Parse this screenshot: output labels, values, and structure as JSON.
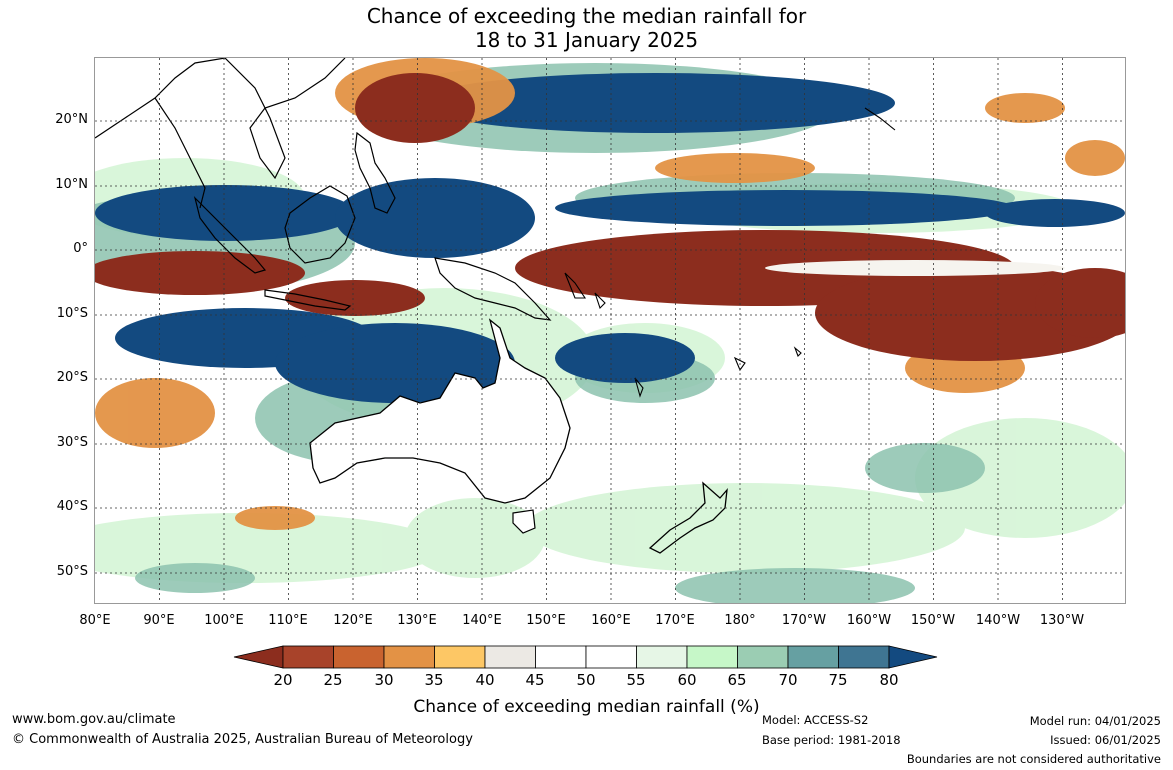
{
  "title_line1": "Chance of exceeding the median rainfall for",
  "title_line2": "18 to 31 January 2025",
  "lat_labels": [
    "20°N",
    "10°N",
    "0°",
    "10°S",
    "20°S",
    "30°S",
    "40°S",
    "50°S"
  ],
  "lon_labels": [
    "80°E",
    "90°E",
    "100°E",
    "110°E",
    "120°E",
    "130°E",
    "140°E",
    "150°E",
    "160°E",
    "170°E",
    "180°",
    "170°W",
    "160°W",
    "150°W",
    "140°W",
    "130°W"
  ],
  "colorbar": {
    "ticks": [
      "20",
      "25",
      "30",
      "35",
      "40",
      "45",
      "50",
      "55",
      "60",
      "65",
      "70",
      "75",
      "80"
    ],
    "colors": [
      "#8c2d1e",
      "#a8432a",
      "#c9632f",
      "#e39245",
      "#fdc765",
      "#ece9e4",
      "#ffffff",
      "#ffffff",
      "#e6f6e6",
      "#c6f7c8",
      "#9bcdb3",
      "#66a0a2",
      "#3f7592",
      "#134a80"
    ],
    "label": "Chance of exceeding median rainfall (%)"
  },
  "footer": {
    "url": "www.bom.gov.au/climate",
    "copyright": "© Commonwealth of Australia 2025, Australian Bureau of Meteorology",
    "model": "Model: ACCESS-S2",
    "base_period": "Base period: 1981-2018",
    "model_run": "Model run: 04/01/2025",
    "issued": "Issued: 06/01/2025",
    "disclaimer": "Boundaries are not considered authoritative"
  }
}
